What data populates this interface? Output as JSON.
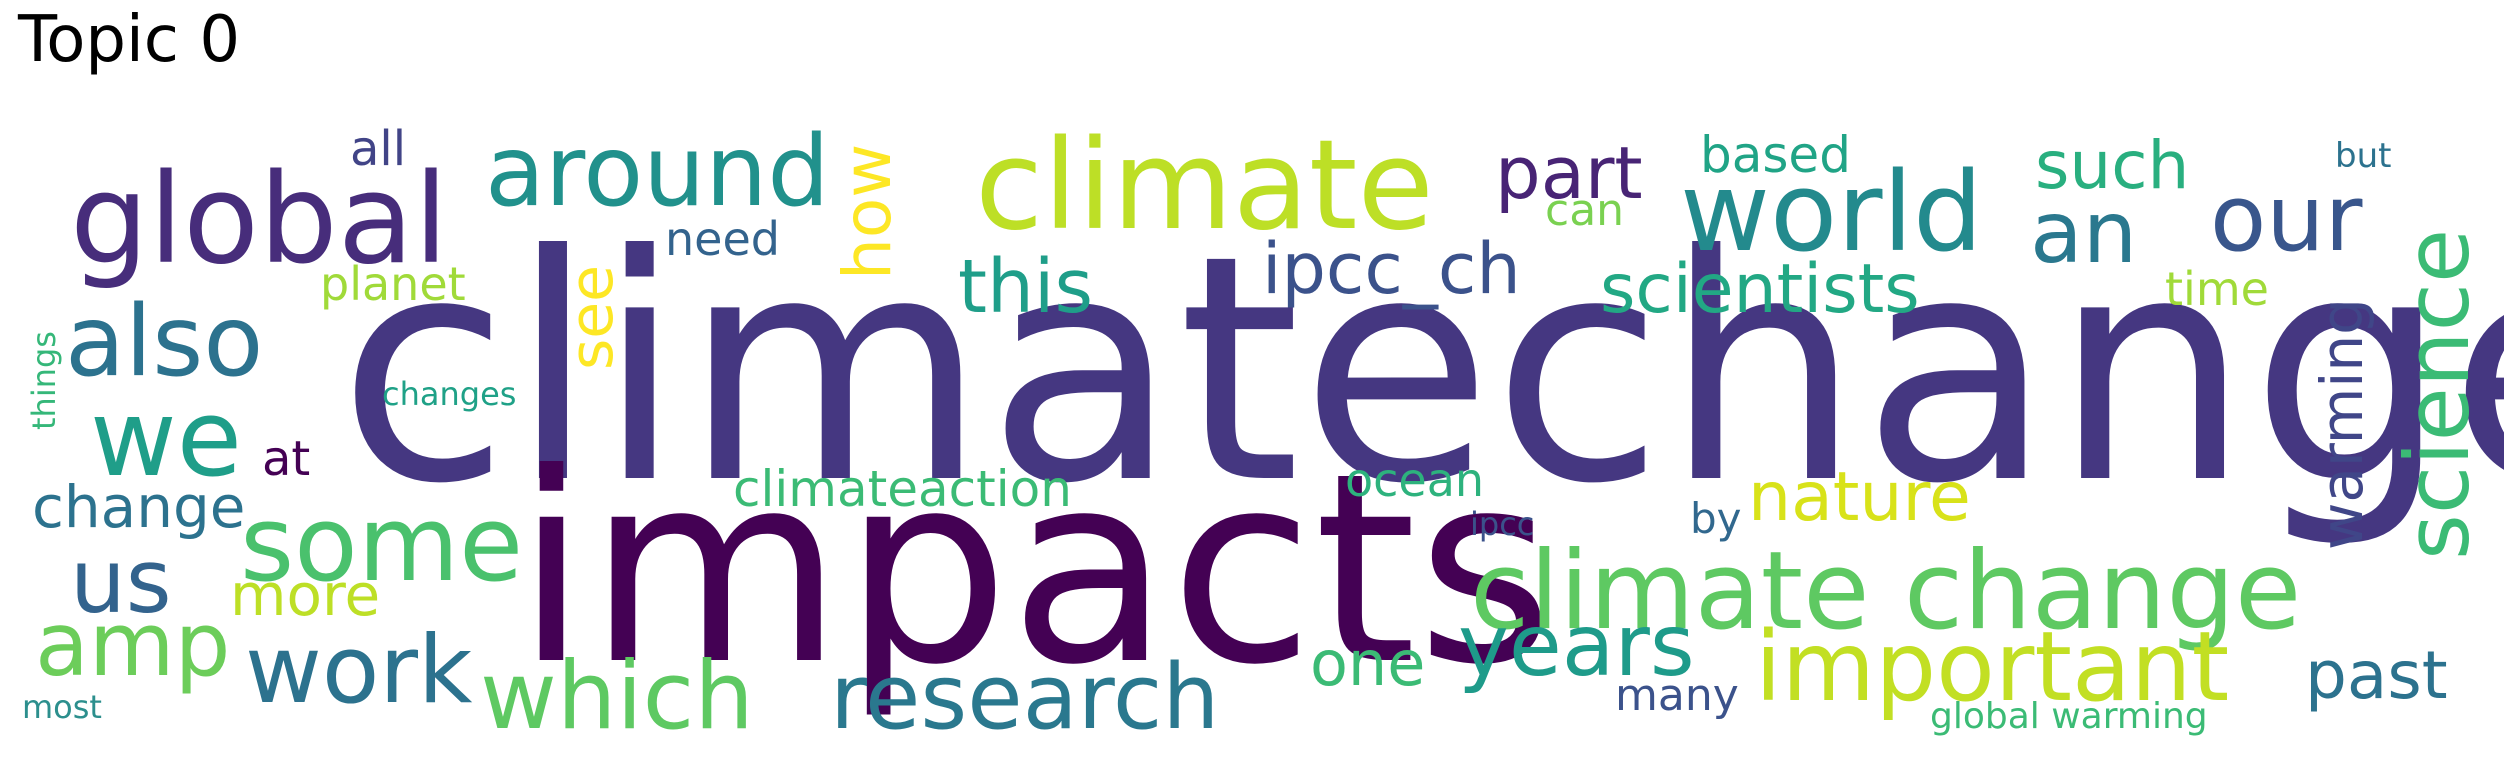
{
  "title": "Topic 0",
  "words": [
    {
      "text": "climatechange",
      "color": "#453781"
    },
    {
      "text": "impacts",
      "color": "#440154"
    },
    {
      "text": "climate",
      "color": "#bddf26"
    },
    {
      "text": "global",
      "color": "#472d7b"
    },
    {
      "text": "world",
      "color": "#238a8d"
    },
    {
      "text": "around",
      "color": "#21918c"
    },
    {
      "text": "climate change",
      "color": "#5ec962"
    },
    {
      "text": "science",
      "color": "#3bbb75"
    },
    {
      "text": "our",
      "color": "#39568c"
    },
    {
      "text": "an",
      "color": "#2a788e"
    },
    {
      "text": "part",
      "color": "#482475"
    },
    {
      "text": "such",
      "color": "#29af7f"
    },
    {
      "text": "based",
      "color": "#20a486"
    },
    {
      "text": "but",
      "color": "#2c728e"
    },
    {
      "text": "all",
      "color": "#414487"
    },
    {
      "text": "how",
      "color": "#fde725"
    },
    {
      "text": "need",
      "color": "#33638d"
    },
    {
      "text": "can",
      "color": "#7ad151"
    },
    {
      "text": "also",
      "color": "#2c728e"
    },
    {
      "text": "this",
      "color": "#1f9e89"
    },
    {
      "text": "ipcc_ch",
      "color": "#3b528b"
    },
    {
      "text": "scientists",
      "color": "#22a884"
    },
    {
      "text": "time",
      "color": "#a0da39"
    },
    {
      "text": "warming",
      "color": "#404688"
    },
    {
      "text": "planet",
      "color": "#a0da39"
    },
    {
      "text": "see",
      "color": "#fde725"
    },
    {
      "text": "things",
      "color": "#35b779"
    },
    {
      "text": "changes",
      "color": "#1fa187"
    },
    {
      "text": "we",
      "color": "#1f9e89"
    },
    {
      "text": "at",
      "color": "#440154"
    },
    {
      "text": "some",
      "color": "#4ac16d"
    },
    {
      "text": "climateaction",
      "color": "#3bbb75"
    },
    {
      "text": "ocean",
      "color": "#2db27d"
    },
    {
      "text": "nature",
      "color": "#d8e219"
    },
    {
      "text": "change",
      "color": "#2c728e"
    },
    {
      "text": "us",
      "color": "#33638d"
    },
    {
      "text": "by",
      "color": "#31688e"
    },
    {
      "text": "ipcc",
      "color": "#3b528b"
    },
    {
      "text": "more",
      "color": "#bddf26"
    },
    {
      "text": "amp",
      "color": "#6ccd5a"
    },
    {
      "text": "years",
      "color": "#1e9b8a"
    },
    {
      "text": "important",
      "color": "#c2df23"
    },
    {
      "text": "past",
      "color": "#2c728e"
    },
    {
      "text": "work",
      "color": "#2c728e"
    },
    {
      "text": "which",
      "color": "#5ec962"
    },
    {
      "text": "research",
      "color": "#2a788e"
    },
    {
      "text": "one",
      "color": "#3bbb75"
    },
    {
      "text": "many",
      "color": "#3b528b"
    },
    {
      "text": "most",
      "color": "#2c8f8d"
    },
    {
      "text": "global warming",
      "color": "#3bbb75"
    }
  ]
}
